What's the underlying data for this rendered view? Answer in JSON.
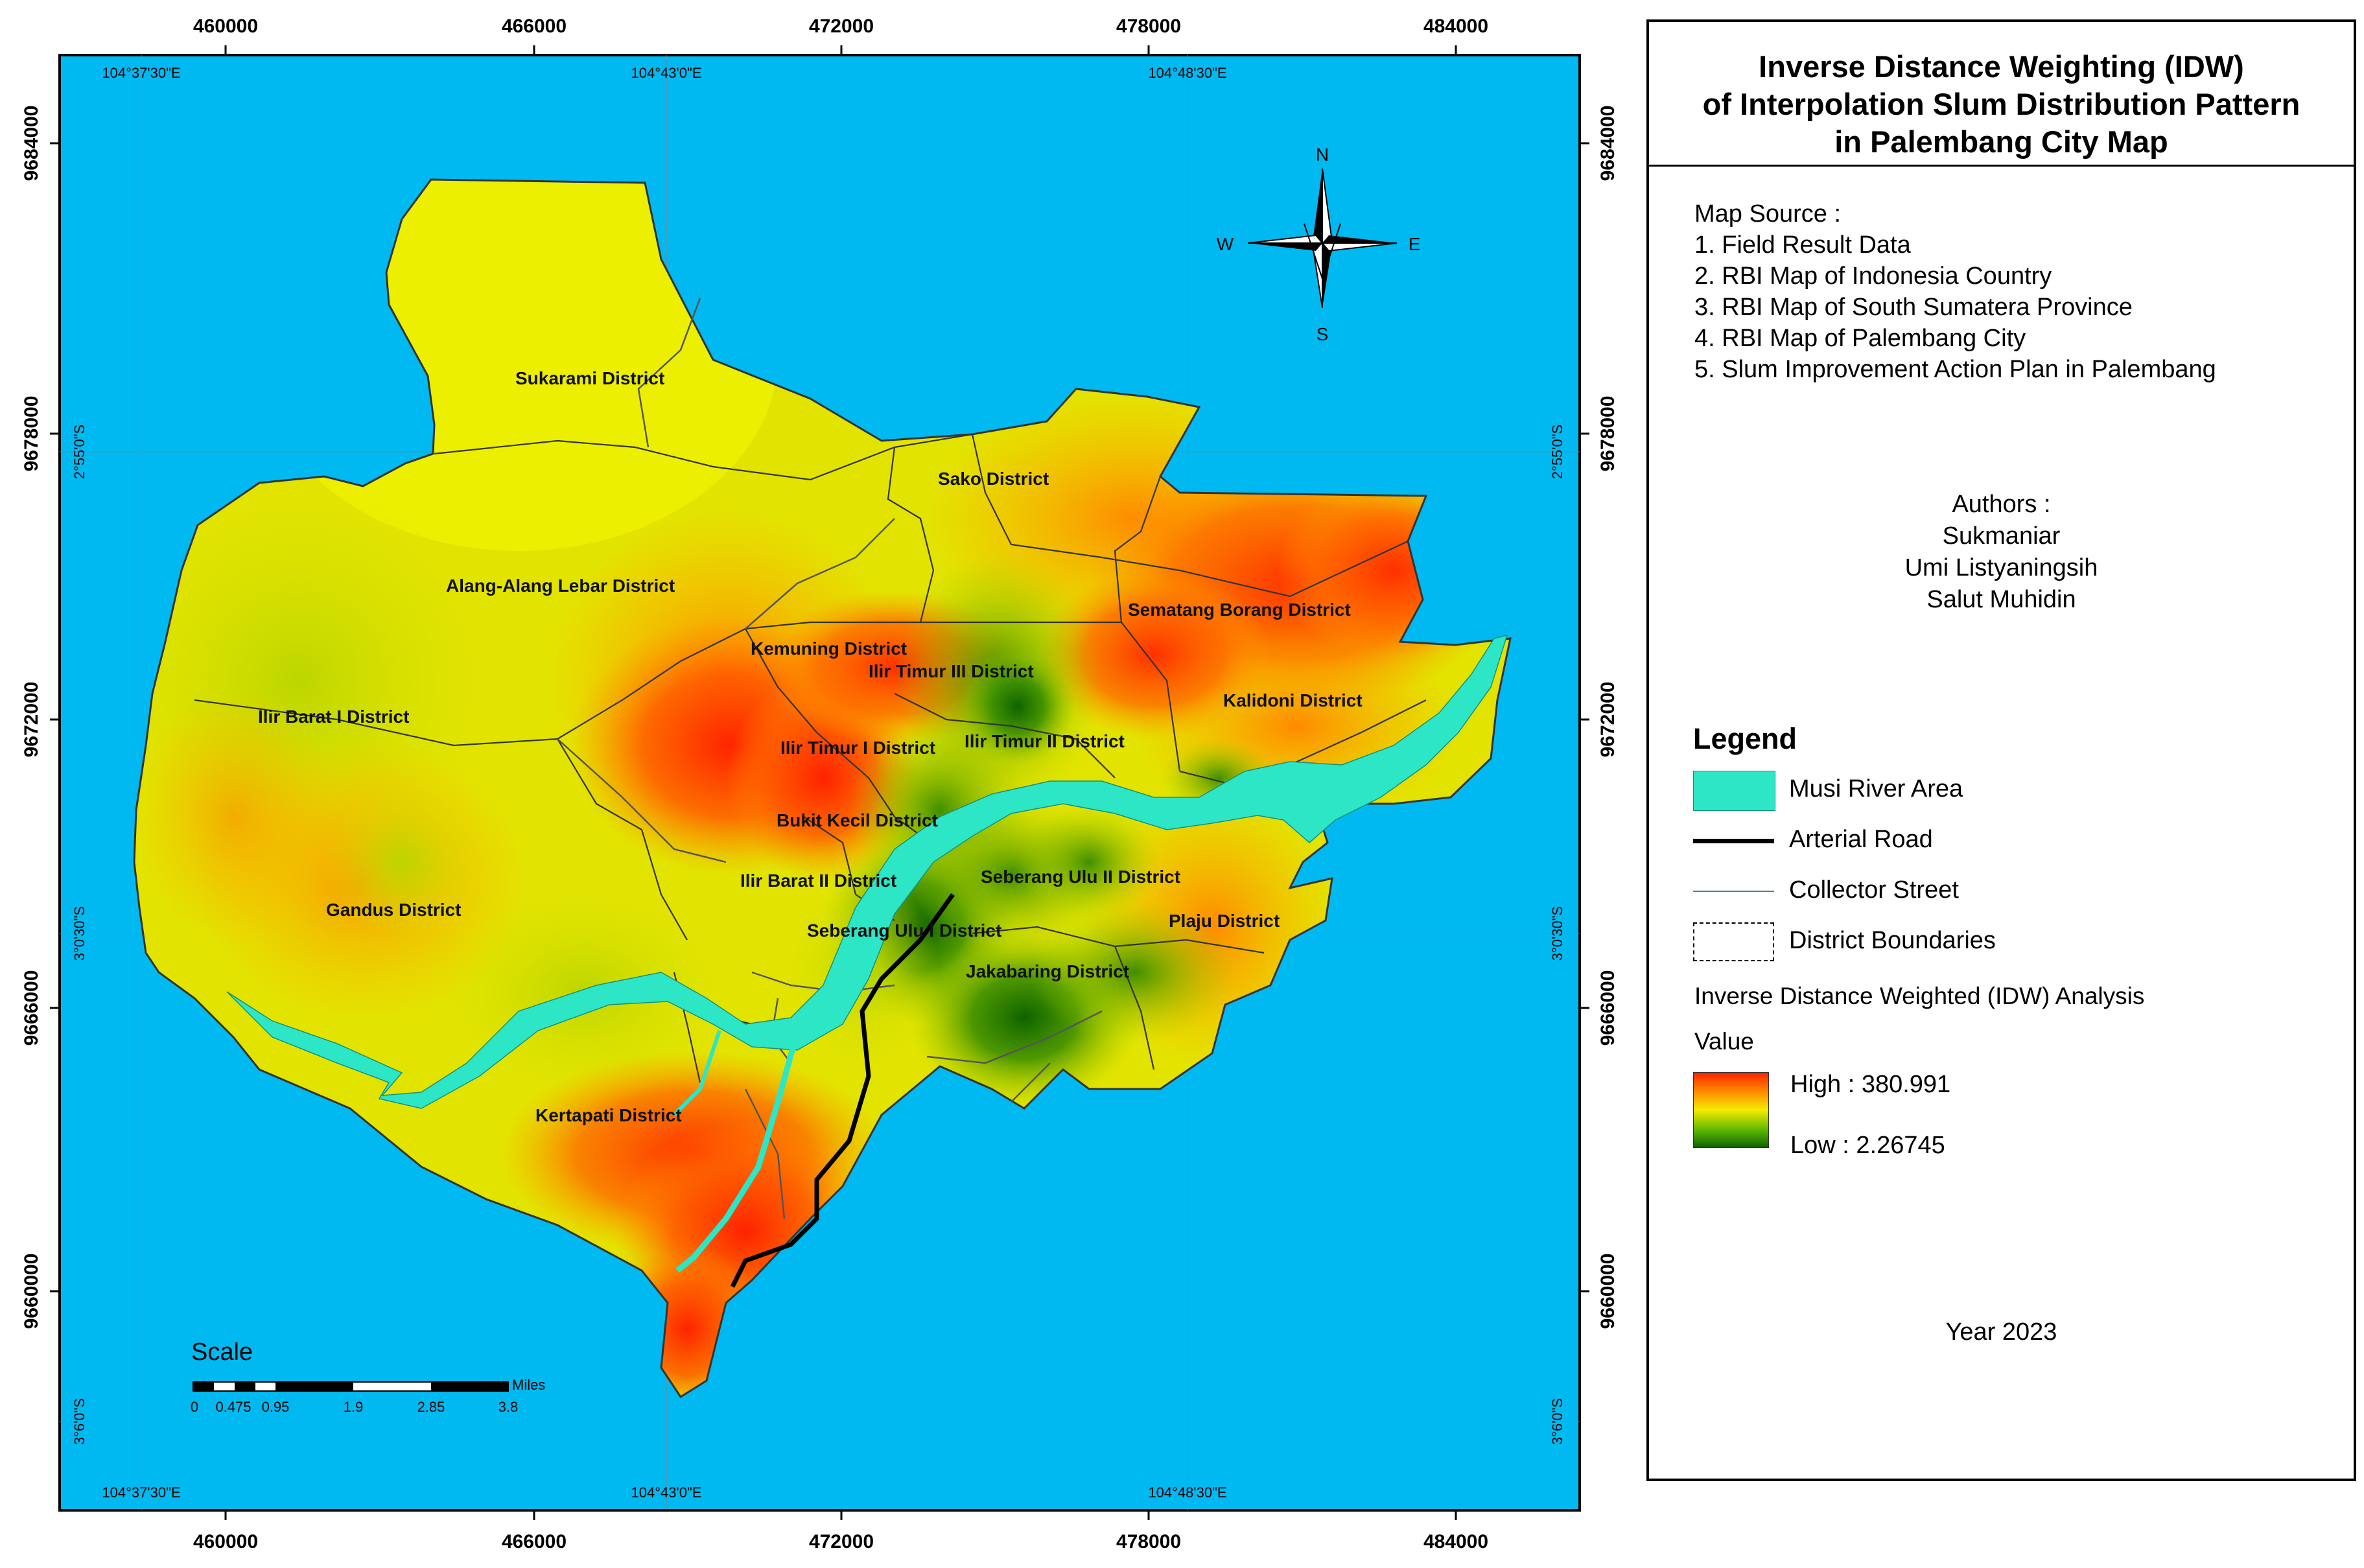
{
  "map": {
    "top_coords": [
      "460000",
      "466000",
      "472000",
      "478000",
      "484000"
    ],
    "bottom_coords": [
      "460000",
      "466000",
      "472000",
      "478000",
      "484000"
    ],
    "left_coords": [
      "9684000",
      "9678000",
      "9672000",
      "9666000",
      "9660000"
    ],
    "right_coords": [
      "9684000",
      "9678000",
      "9672000",
      "9666000",
      "9660000"
    ],
    "inner_lon_top": [
      "104°37'30\"E",
      "104°43'0\"E",
      "104°48'30\"E"
    ],
    "inner_lon_bottom": [
      "104°37'30\"E",
      "104°43'0\"E",
      "104°48'30\"E"
    ],
    "inner_lat_left": [
      "2°55'0\"S",
      "3°0'30\"S",
      "3°6'0\"S"
    ],
    "inner_lat_right": [
      "2°55'0\"S",
      "3°0'30\"S",
      "3°6'0\"S"
    ],
    "districts": [
      "Sukarami District",
      "Sako District",
      "Alang-Alang Lebar District",
      "Sematang Borang District",
      "Kemuning District",
      "Ilir Timur III District",
      "Ilir Barat I District",
      "Kalidoni District",
      "Ilir Timur I District",
      "Ilir Timur II District",
      "Bukit Kecil District",
      "Ilir Barat II District",
      "Seberang Ulu II District",
      "Gandus District",
      "Plaju District",
      "Seberang Ulu I District",
      "Jakabaring District",
      "Kertapati District"
    ],
    "compass": {
      "n": "N",
      "s": "S",
      "e": "E",
      "w": "W"
    },
    "scale": {
      "title": "Scale",
      "ticks": [
        "0",
        "0.475",
        "0.95",
        "1.9",
        "2.85",
        "3.8"
      ],
      "unit": "Miles"
    },
    "colors": {
      "sea": "#00b9f0",
      "river": "#2ce6c6",
      "high": "#ff2400",
      "mid": "#f4ec00",
      "low": "#0f6300"
    }
  },
  "panel": {
    "title_lines": [
      "Inverse Distance Weighting (IDW)",
      "of Interpolation Slum Distribution Pattern",
      "in Palembang City Map"
    ],
    "source_header": "Map Source :",
    "sources": [
      "1. Field Result Data",
      "2. RBI Map of Indonesia Country",
      "3. RBI Map of South Sumatera Province",
      "4. RBI Map of Palembang City",
      "5. Slum Improvement Action Plan in Palembang"
    ],
    "authors_header": "Authors :",
    "authors": [
      "Sukmaniar",
      "Umi Listyaningsih",
      "Salut Muhidin"
    ],
    "legend_title": "Legend",
    "legend_items": [
      "Musi River Area",
      "Arterial Road",
      "Collector Street",
      "District Boundaries"
    ],
    "idw_title": "Inverse Distance Weighted (IDW) Analysis",
    "value_label": "Value",
    "high_label": "High : 380.991",
    "low_label": "Low : 2.26745",
    "year": "Year 2023"
  }
}
